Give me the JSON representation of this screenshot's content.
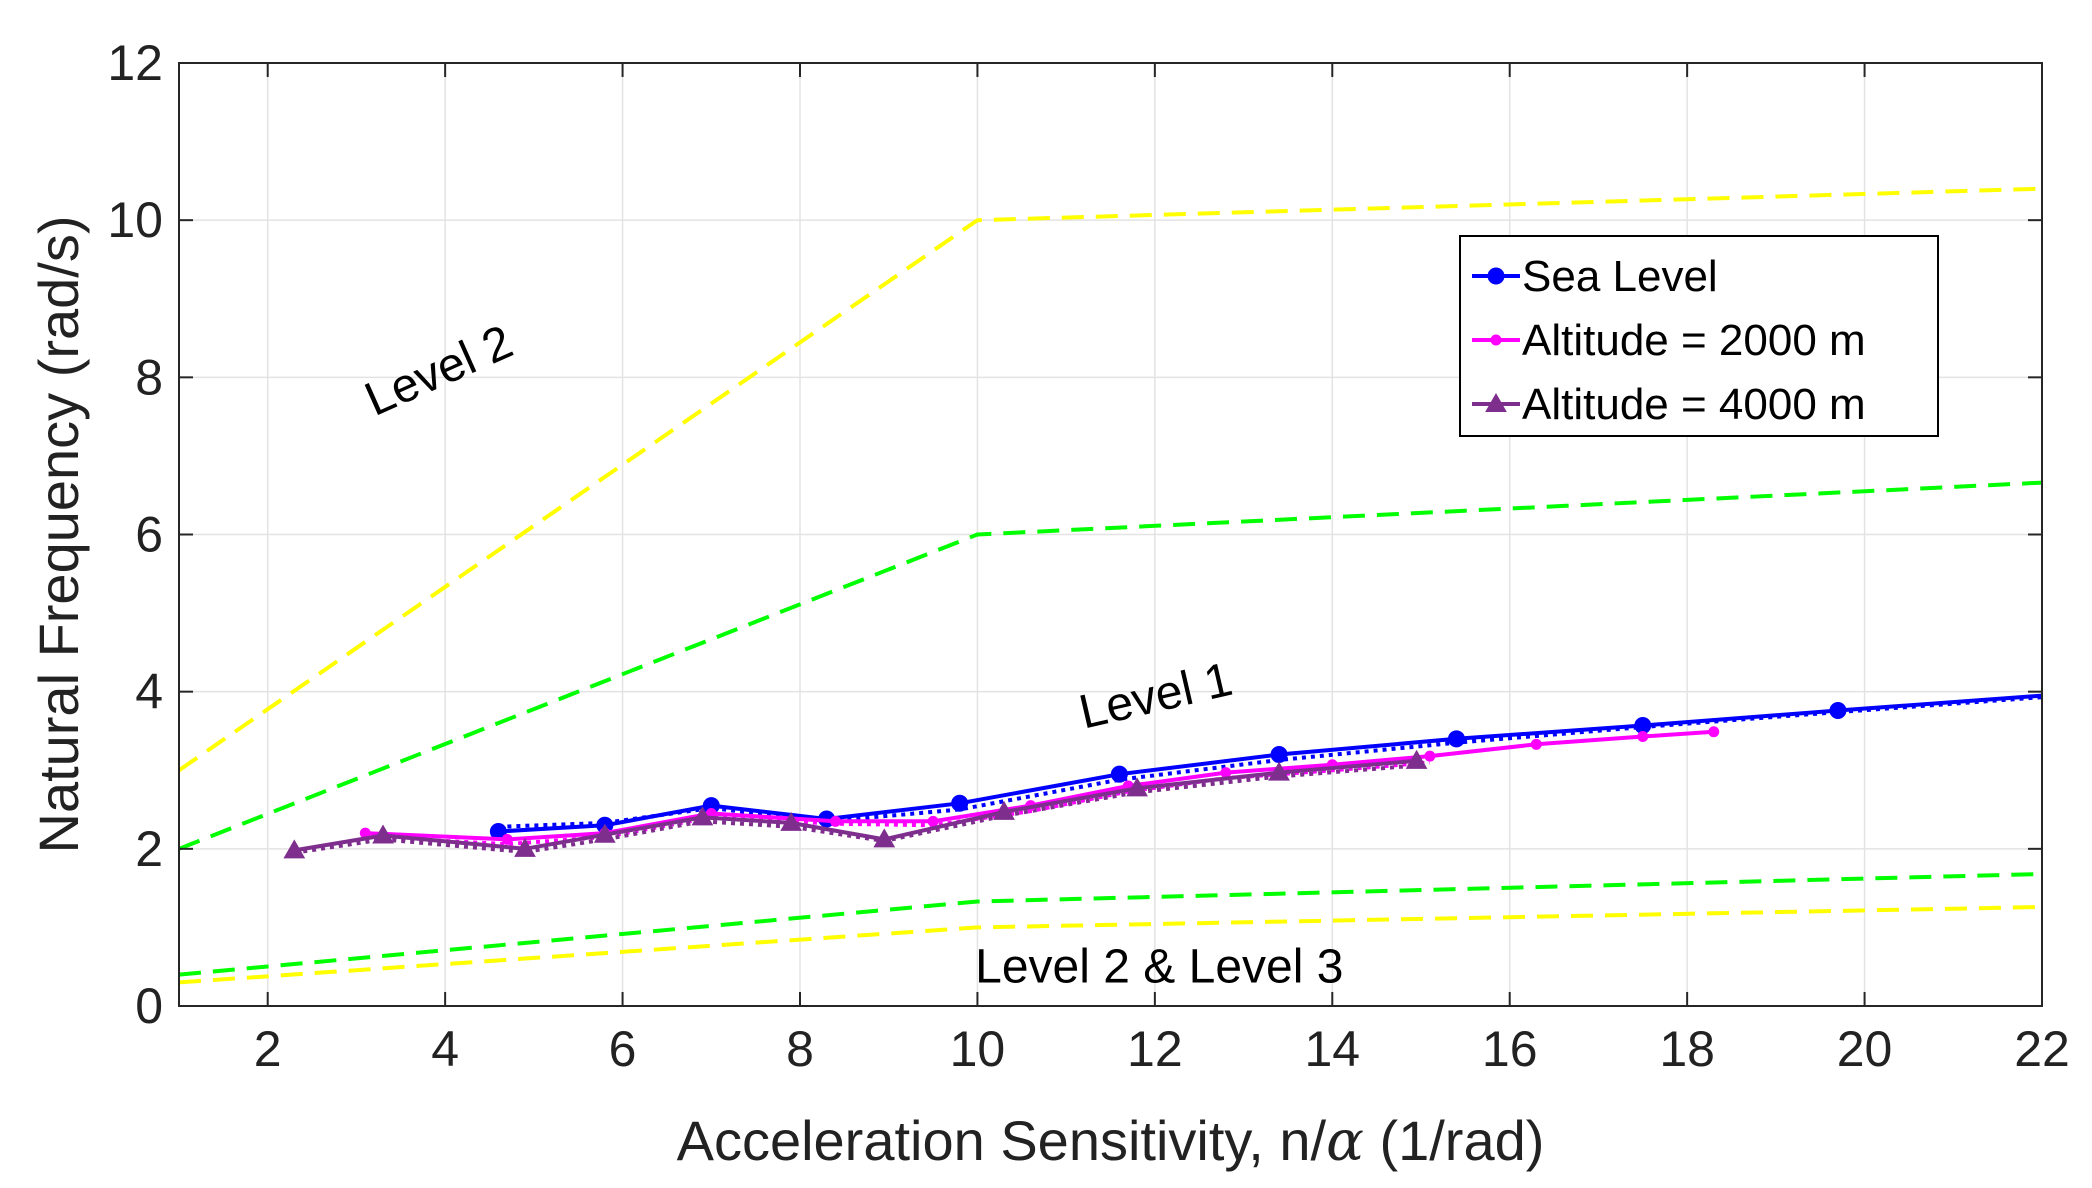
{
  "chart_data": {
    "type": "line",
    "title": "",
    "xlabel_prefix": "Acceleration Sensitivity, n/",
    "xlabel_symbol": "α",
    "xlabel_suffix": " (1/rad)",
    "ylabel": "Natural Frequency (rad/s)",
    "xlim": [
      1,
      22
    ],
    "ylim": [
      0,
      12
    ],
    "xticks": [
      2,
      4,
      6,
      8,
      10,
      12,
      14,
      16,
      18,
      20,
      22
    ],
    "yticks": [
      0,
      2,
      4,
      6,
      8,
      10,
      12
    ],
    "grid": true,
    "legend_position": "top-right",
    "series": [
      {
        "name": "Sea Level",
        "color": "#0000ff",
        "marker": "circle",
        "x": [
          4.6,
          5.8,
          7.0,
          8.3,
          9.8,
          11.6,
          13.4,
          15.4,
          17.5,
          19.7,
          22.0
        ],
        "y": [
          2.22,
          2.3,
          2.55,
          2.38,
          2.58,
          2.95,
          3.2,
          3.4,
          3.57,
          3.76,
          3.95
        ]
      },
      {
        "name": "Altitude = 2000 m",
        "color": "#ff00ff",
        "marker": "dot",
        "x": [
          3.1,
          4.7,
          5.8,
          7.0,
          8.4,
          9.5,
          10.6,
          11.7,
          12.8,
          14.0,
          15.1,
          16.3,
          17.5,
          18.3
        ],
        "y": [
          2.2,
          2.12,
          2.2,
          2.45,
          2.35,
          2.35,
          2.55,
          2.8,
          2.97,
          3.07,
          3.18,
          3.33,
          3.43,
          3.49
        ]
      },
      {
        "name": "Altitude = 4000 m",
        "color": "#7e2f8e",
        "marker": "triangle",
        "x": [
          2.3,
          3.3,
          4.9,
          5.8,
          6.9,
          7.9,
          8.95,
          10.3,
          11.8,
          13.4,
          14.95
        ],
        "y": [
          1.98,
          2.17,
          2.0,
          2.18,
          2.4,
          2.33,
          2.12,
          2.47,
          2.77,
          2.97,
          3.12
        ]
      }
    ],
    "dotted_overlays": [
      {
        "of": "Sea Level",
        "color": "#0000ff",
        "x": [
          4.6,
          5.8,
          7.0,
          8.3,
          9.8,
          11.6,
          13.4,
          15.4,
          17.5,
          19.7,
          22.0
        ],
        "y": [
          2.28,
          2.33,
          2.52,
          2.35,
          2.5,
          2.88,
          3.13,
          3.35,
          3.55,
          3.74,
          3.93
        ]
      },
      {
        "of": "Altitude = 2000 m",
        "color": "#ff00ff",
        "x": [
          3.1,
          4.7,
          5.8,
          7.0,
          8.4,
          9.5,
          10.6,
          11.7,
          12.8,
          14.0,
          15.1
        ],
        "y": [
          2.15,
          2.06,
          2.15,
          2.4,
          2.32,
          2.3,
          2.48,
          2.73,
          2.9,
          3.0,
          3.1
        ]
      },
      {
        "of": "Altitude = 4000 m",
        "color": "#7e2f8e",
        "x": [
          2.3,
          3.3,
          4.9,
          5.8,
          6.9,
          7.9,
          8.95,
          10.3,
          11.8,
          13.4,
          14.95
        ],
        "y": [
          1.95,
          2.12,
          1.96,
          2.12,
          2.35,
          2.28,
          2.1,
          2.42,
          2.72,
          2.92,
          3.06
        ]
      }
    ],
    "boundaries": [
      {
        "name": "Level 2 upper boundary",
        "color": "#ffff00",
        "x": [
          1,
          10,
          22
        ],
        "y": [
          3.0,
          10.0,
          10.4
        ]
      },
      {
        "name": "Level 1 upper boundary",
        "color": "#00ff00",
        "x": [
          1,
          10,
          22
        ],
        "y": [
          2.0,
          6.0,
          6.66
        ]
      },
      {
        "name": "Level 1 lower boundary",
        "color": "#00ff00",
        "x": [
          1,
          10,
          22
        ],
        "y": [
          0.4,
          1.33,
          1.68
        ]
      },
      {
        "name": "Level 2 lower boundary",
        "color": "#ffff00",
        "x": [
          1,
          10,
          22
        ],
        "y": [
          0.3,
          1.0,
          1.26
        ]
      }
    ],
    "annotations": [
      {
        "text": "Level 2",
        "x": 4.0,
        "y": 7.9,
        "rotation": -24
      },
      {
        "text": "Level 1",
        "x": 12.05,
        "y": 3.75,
        "rotation": -13
      },
      {
        "text": "Level 2 & Level 3",
        "x": 12.05,
        "y": 0.3,
        "rotation": 0
      }
    ]
  }
}
